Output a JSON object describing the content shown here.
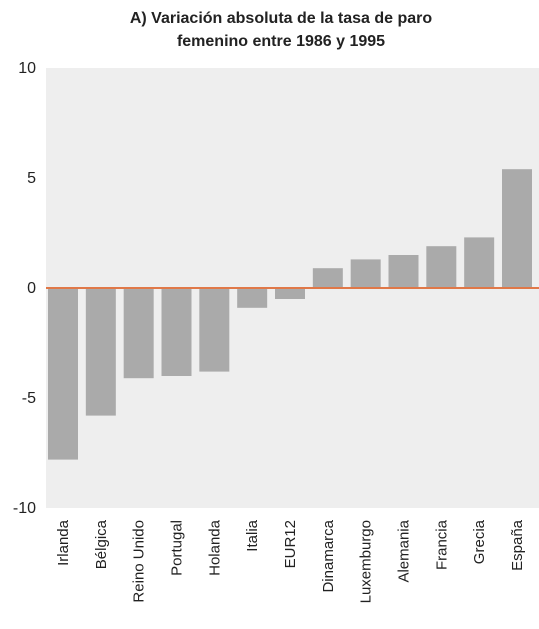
{
  "chart_data": {
    "type": "bar",
    "title": "A) Variación absoluta de la tasa de paro femenino entre 1986 y 1995",
    "title_lines": [
      "A) Variación absoluta de la tasa de paro",
      "femenino entre 1986 y 1995"
    ],
    "xlabel": "",
    "ylabel": "",
    "ylim": [
      -10,
      10
    ],
    "yticks": [
      10,
      5,
      0,
      -5,
      -10
    ],
    "grid": false,
    "categories": [
      "Irlanda",
      "Bélgica",
      "Reino Unido",
      "Portugal",
      "Holanda",
      "Italia",
      "EUR12",
      "Dinamarca",
      "Luxemburgo",
      "Alemania",
      "Francia",
      "Grecia",
      "España"
    ],
    "values": [
      -7.8,
      -5.8,
      -4.1,
      -4.0,
      -3.8,
      -0.9,
      -0.5,
      0.9,
      1.3,
      1.5,
      1.9,
      2.3,
      5.4
    ],
    "colors": {
      "plot_background": "#eeeeee",
      "bar": "#aaaaaa",
      "zero_line": "#e07848",
      "text": "#222222"
    }
  }
}
